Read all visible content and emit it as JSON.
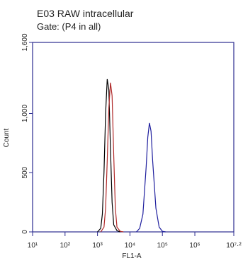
{
  "chart_data": {
    "type": "line",
    "title": "E03 RAW intracellular",
    "subtitle": "Gate: (P4 in all)",
    "xlabel": "FL1-A",
    "ylabel": "Count",
    "xscale": "log",
    "xlim": [
      10,
      15848932
    ],
    "xticks": [
      {
        "value": 10,
        "label": "10¹"
      },
      {
        "value": 100,
        "label": "10²"
      },
      {
        "value": 1000,
        "label": "10³"
      },
      {
        "value": 10000,
        "label": "10⁴"
      },
      {
        "value": 100000,
        "label": "10⁵"
      },
      {
        "value": 1000000,
        "label": "10⁶"
      },
      {
        "value": 15848932,
        "label": "10⁷·²"
      }
    ],
    "ylim": [
      0,
      1600
    ],
    "yticks": [
      0,
      500,
      {
        "value": 1000,
        "label": "1,000"
      },
      {
        "value": 1600,
        "label": "1,600"
      }
    ],
    "frame_color": "#2b2b8f",
    "series": [
      {
        "color": "#000000",
        "x": [
          1000,
          1259,
          1413,
          1585,
          1778,
          1995,
          2239,
          2512,
          2818,
          3162,
          3981,
          5012
        ],
        "values": [
          0,
          30,
          150,
          500,
          1000,
          1290,
          1200,
          700,
          250,
          60,
          10,
          0
        ]
      },
      {
        "color": "#b02a2a",
        "x": [
          1259,
          1585,
          1778,
          1995,
          2239,
          2512,
          2818,
          3162,
          3548,
          3981,
          5012,
          6310
        ],
        "values": [
          0,
          40,
          200,
          600,
          1050,
          1260,
          1150,
          650,
          200,
          40,
          5,
          0
        ]
      },
      {
        "color": "#1f1f9e",
        "x": [
          15849,
          19953,
          25119,
          31623,
          35481,
          39811,
          44668,
          50119,
          63096,
          79433,
          100000,
          125893
        ],
        "values": [
          0,
          30,
          150,
          550,
          800,
          920,
          850,
          600,
          200,
          40,
          5,
          0
        ]
      }
    ]
  }
}
